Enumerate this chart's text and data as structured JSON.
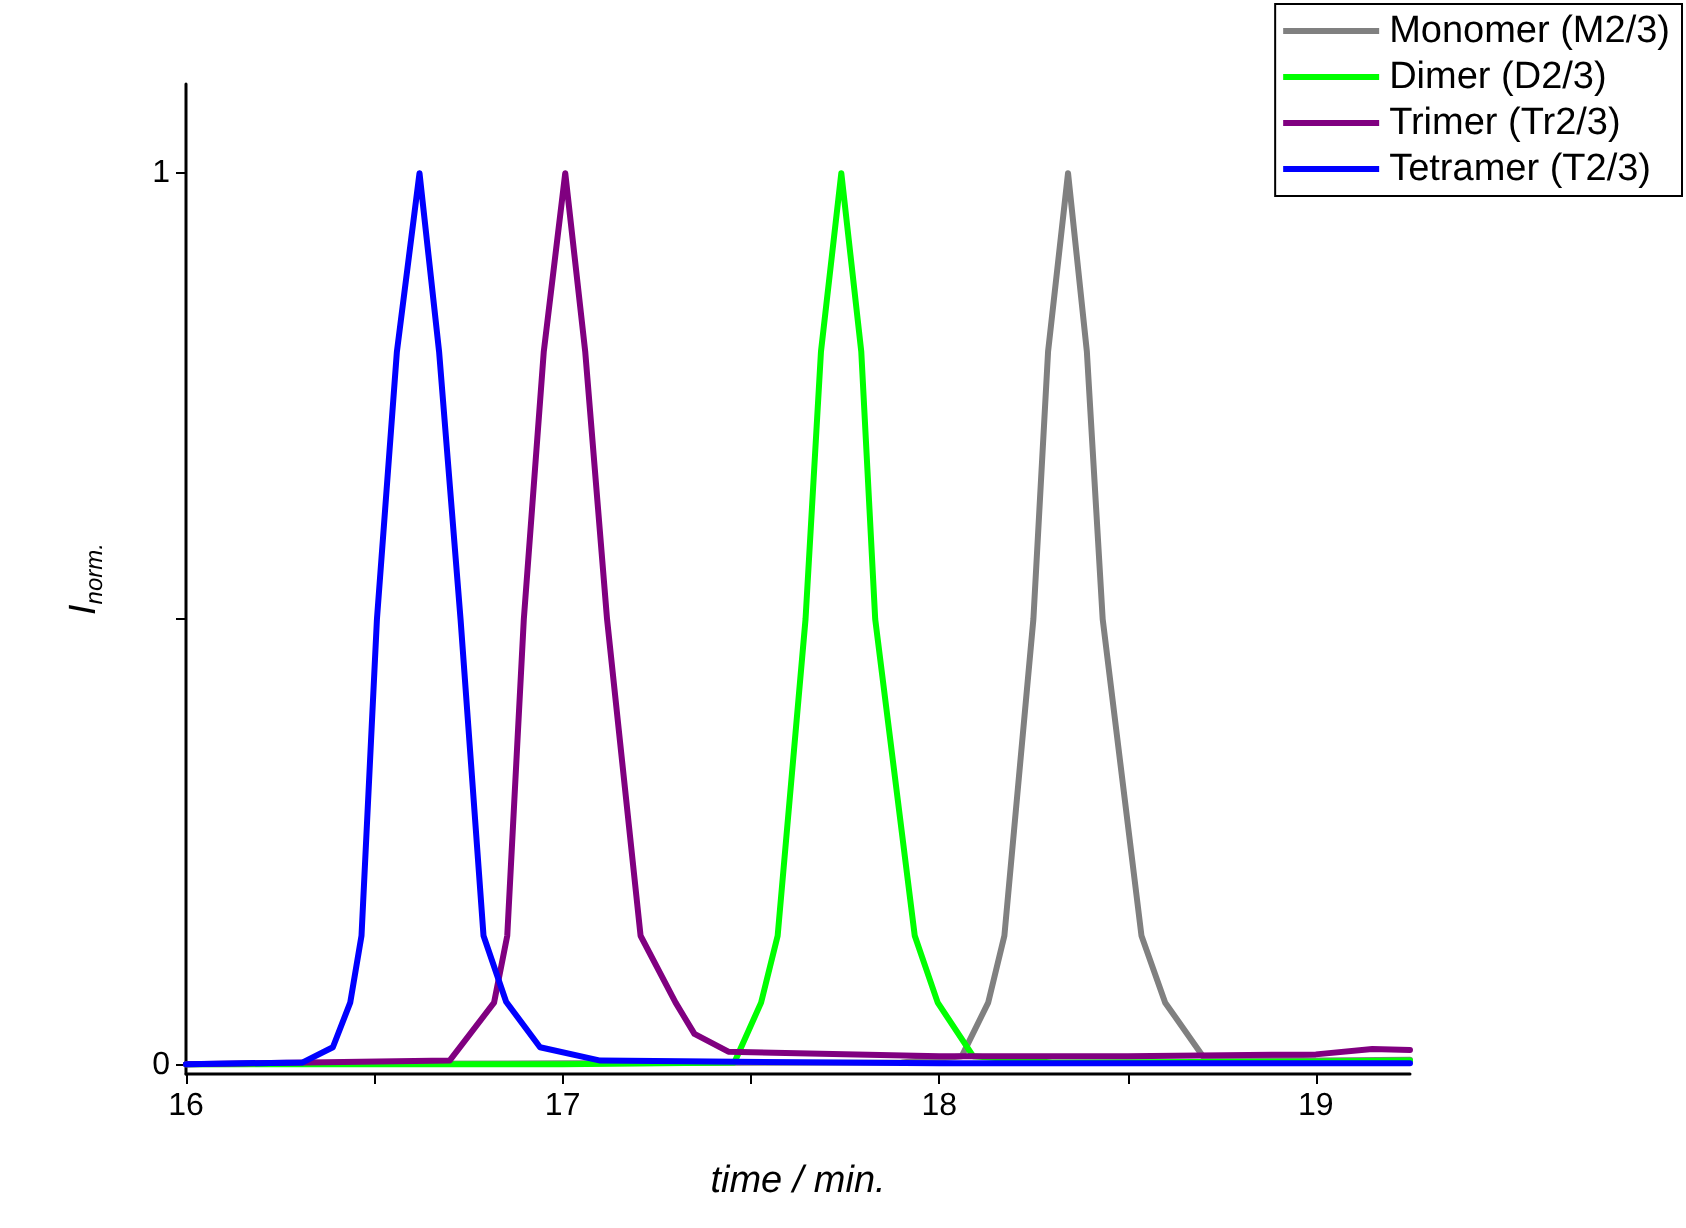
{
  "chart_data": {
    "type": "line",
    "xlabel": "time / min.",
    "ylabel": "I$_{norm.}$",
    "xlim": [
      16,
      19.25
    ],
    "xticks": [
      16,
      {
        "value": 16.5,
        "label": null
      },
      17,
      {
        "value": 17.5,
        "label": null
      },
      18,
      {
        "value": 18.5,
        "label": null
      },
      19
    ],
    "ylim": [
      -0.01,
      1.1
    ],
    "yticks": [
      0,
      {
        "value": 0.5,
        "label": null
      },
      1
    ],
    "grid": false,
    "legend": "top right",
    "marker": "none",
    "line_style": "solid",
    "series": [
      {
        "name": "Monomer (M2/3)",
        "color": "#808080",
        "x": [
          16,
          17,
          17.9,
          18.06,
          18.13,
          18.173,
          18.25,
          18.289,
          18.342,
          18.392,
          18.434,
          18.537,
          18.6,
          18.7,
          19,
          19.25
        ],
        "values": [
          0.001,
          0.002,
          0.003,
          0.01,
          0.07,
          0.145,
          0.5,
          0.8,
          1,
          0.8,
          0.5,
          0.145,
          0.07,
          0.01,
          0.005,
          0.006
        ]
      },
      {
        "name": "Dimer (D2/3)",
        "color": "#00ff00",
        "x": [
          16,
          17,
          17.456,
          17.527,
          17.571,
          17.645,
          17.686,
          17.74,
          17.793,
          17.83,
          17.935,
          17.996,
          18.09,
          18.3,
          19,
          19.25
        ],
        "values": [
          0.001,
          0.001,
          0.003,
          0.07,
          0.145,
          0.5,
          0.8,
          1,
          0.8,
          0.5,
          0.145,
          0.07,
          0.01,
          0.003,
          0.004,
          0.005
        ]
      },
      {
        "name": "Trimer (Tr2/3)",
        "color": "#800080",
        "x": [
          16,
          16.7,
          16.818,
          16.853,
          16.897,
          16.95,
          17.007,
          17.06,
          17.118,
          17.207,
          17.3,
          17.35,
          17.44,
          18,
          18.5,
          19,
          19.15,
          19.25
        ],
        "values": [
          0.001,
          0.005,
          0.07,
          0.145,
          0.5,
          0.8,
          1,
          0.8,
          0.5,
          0.145,
          0.07,
          0.035,
          0.015,
          0.01,
          0.01,
          0.012,
          0.018,
          0.017
        ]
      },
      {
        "name": "Tetramer (T2/3)",
        "color": "#0000ff",
        "x": [
          16,
          16.31,
          16.39,
          16.436,
          16.466,
          16.507,
          16.56,
          16.62,
          16.672,
          16.729,
          16.79,
          16.85,
          16.94,
          17.1,
          18,
          19.25
        ],
        "values": [
          0.001,
          0.003,
          0.02,
          0.07,
          0.145,
          0.5,
          0.8,
          1,
          0.8,
          0.5,
          0.145,
          0.071,
          0.02,
          0.005,
          0.002,
          0.002
        ]
      }
    ]
  }
}
